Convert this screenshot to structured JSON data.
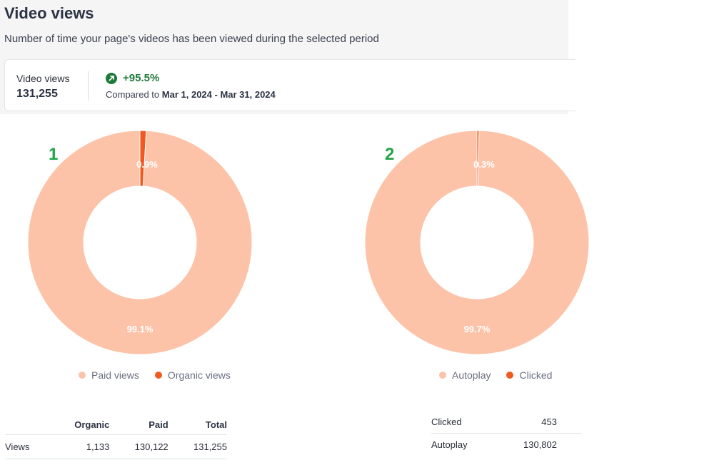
{
  "header": {
    "title": "Video views",
    "subtitle": "Number of time your page's videos has been viewed during the selected period"
  },
  "kpi": {
    "label": "Video views",
    "value": "131,255",
    "change": "+95.5%",
    "compare_prefix": "Compared to",
    "compare_range": "Mar 1, 2024 - Mar 31, 2024"
  },
  "annotations": [
    "1",
    "2"
  ],
  "colors": {
    "light": "#fcc3a9",
    "dark": "#f0591f",
    "positive": "#1f7a3a",
    "marker": "#22a447"
  },
  "chart_data": [
    {
      "type": "pie",
      "donut": true,
      "categories": [
        "Paid views",
        "Organic views"
      ],
      "values": [
        99.1,
        0.9
      ],
      "data_labels": [
        "99.1%",
        "0.9%"
      ],
      "legend": "bottom"
    },
    {
      "type": "pie",
      "donut": true,
      "categories": [
        "Autoplay",
        "Clicked"
      ],
      "values": [
        99.7,
        0.3
      ],
      "data_labels": [
        "99.7%",
        "0.3%"
      ],
      "legend": "bottom"
    }
  ],
  "table1": {
    "headers": [
      "",
      "Organic",
      "Paid",
      "Total"
    ],
    "rows": [
      [
        "Views",
        "1,133",
        "130,122",
        "131,255"
      ]
    ]
  },
  "table2": {
    "rows": [
      [
        "Clicked",
        "453"
      ],
      [
        "Autoplay",
        "130,802"
      ]
    ]
  }
}
